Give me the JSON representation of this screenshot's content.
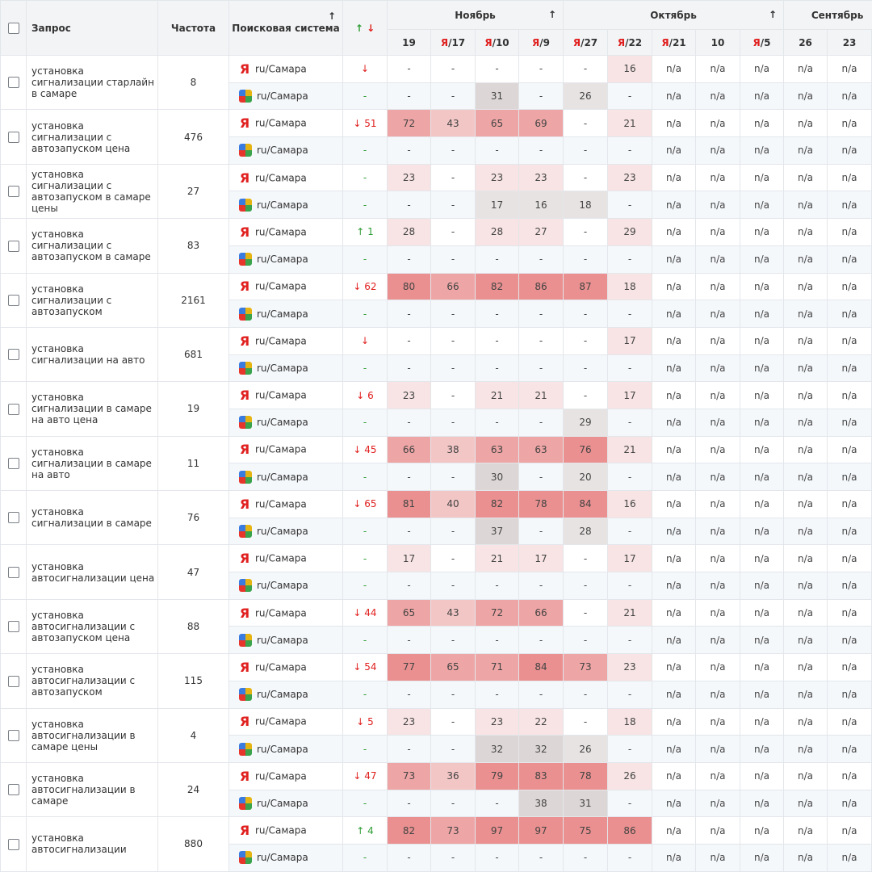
{
  "header": {
    "query_label": "Запрос",
    "freq_label": "Частота",
    "engine_label": "Поисковая система",
    "trend_up": "↑",
    "trend_down": "↓",
    "sort_arrow": "↑",
    "months": [
      {
        "label": "Ноябрь",
        "span": 4,
        "arrow": "↑"
      },
      {
        "label": "Октябрь",
        "span": 5,
        "arrow": "↑"
      },
      {
        "label": "Сентябрь",
        "span": 3,
        "arrow": ""
      }
    ],
    "days": [
      {
        "prefix": "",
        "label": "19"
      },
      {
        "prefix": "Я",
        "label": "/17"
      },
      {
        "prefix": "Я",
        "label": "/10"
      },
      {
        "prefix": "Я",
        "label": "/9"
      },
      {
        "prefix": "Я",
        "label": "/27"
      },
      {
        "prefix": "Я",
        "label": "/22"
      },
      {
        "prefix": "Я",
        "label": "/21"
      },
      {
        "prefix": "",
        "label": "10"
      },
      {
        "prefix": "Я",
        "label": "/5"
      },
      {
        "prefix": "",
        "label": "26"
      },
      {
        "prefix": "",
        "label": "23"
      },
      {
        "prefix": "",
        "label": ""
      }
    ]
  },
  "colors": {
    "yandex_scale": [
      "#f8e4e4",
      "#f3c6c6",
      "#eea5a5",
      "#ea9090"
    ],
    "google_scale": [
      "#e8e3e3",
      "#ddd6d6"
    ]
  },
  "engines": {
    "yandex": "ru/Самара",
    "google": "ru/Самара"
  },
  "rows": [
    {
      "query": "установка сигнализации старлайн в самаре",
      "freq": "8",
      "y_trend": {
        "dir": "down",
        "val": ""
      },
      "y": [
        "-",
        "-",
        "-",
        "-",
        "-",
        "16",
        "n/a",
        "n/a",
        "n/a",
        "n/a",
        "n/a",
        "n/a"
      ],
      "g_trend": "-",
      "g": [
        "-",
        "-",
        "31",
        "-",
        "26",
        "-",
        "n/a",
        "n/a",
        "n/a",
        "n/a",
        "n/a",
        "n/a"
      ]
    },
    {
      "query": "установка сигнализации с автозапуском цена",
      "freq": "476",
      "y_trend": {
        "dir": "down",
        "val": "51"
      },
      "y": [
        "72",
        "43",
        "65",
        "69",
        "-",
        "21",
        "n/a",
        "n/a",
        "n/a",
        "n/a",
        "n/a",
        "n/a"
      ],
      "g_trend": "-",
      "g": [
        "-",
        "-",
        "-",
        "-",
        "-",
        "-",
        "n/a",
        "n/a",
        "n/a",
        "n/a",
        "n/a",
        "n/a"
      ]
    },
    {
      "query": "установка сигнализации с автозапуском в самаре цены",
      "freq": "27",
      "y_trend": {
        "dir": "none",
        "val": "-"
      },
      "y": [
        "23",
        "-",
        "23",
        "23",
        "-",
        "23",
        "n/a",
        "n/a",
        "n/a",
        "n/a",
        "n/a",
        "n/a"
      ],
      "g_trend": "-",
      "g": [
        "-",
        "-",
        "17",
        "16",
        "18",
        "-",
        "n/a",
        "n/a",
        "n/a",
        "n/a",
        "n/a",
        "n/a"
      ]
    },
    {
      "query": "установка сигнализации с автозапуском в самаре",
      "freq": "83",
      "y_trend": {
        "dir": "up",
        "val": "1"
      },
      "y": [
        "28",
        "-",
        "28",
        "27",
        "-",
        "29",
        "n/a",
        "n/a",
        "n/a",
        "n/a",
        "n/a",
        "n/a"
      ],
      "g_trend": "-",
      "g": [
        "-",
        "-",
        "-",
        "-",
        "-",
        "-",
        "n/a",
        "n/a",
        "n/a",
        "n/a",
        "n/a",
        "n/a"
      ]
    },
    {
      "query": "установка сигнализации с автозапуском",
      "freq": "2161",
      "y_trend": {
        "dir": "down",
        "val": "62"
      },
      "y": [
        "80",
        "66",
        "82",
        "86",
        "87",
        "18",
        "n/a",
        "n/a",
        "n/a",
        "n/a",
        "n/a",
        "n/a"
      ],
      "g_trend": "-",
      "g": [
        "-",
        "-",
        "-",
        "-",
        "-",
        "-",
        "n/a",
        "n/a",
        "n/a",
        "n/a",
        "n/a",
        "n/a"
      ]
    },
    {
      "query": "установка сигнализации на авто",
      "freq": "681",
      "y_trend": {
        "dir": "down",
        "val": ""
      },
      "y": [
        "-",
        "-",
        "-",
        "-",
        "-",
        "17",
        "n/a",
        "n/a",
        "n/a",
        "n/a",
        "n/a",
        "n/a"
      ],
      "g_trend": "-",
      "g": [
        "-",
        "-",
        "-",
        "-",
        "-",
        "-",
        "n/a",
        "n/a",
        "n/a",
        "n/a",
        "n/a",
        "n/a"
      ]
    },
    {
      "query": "установка сигнализации в самаре на авто цена",
      "freq": "19",
      "y_trend": {
        "dir": "down",
        "val": "6"
      },
      "y": [
        "23",
        "-",
        "21",
        "21",
        "-",
        "17",
        "n/a",
        "n/a",
        "n/a",
        "n/a",
        "n/a",
        "n/a"
      ],
      "g_trend": "-",
      "g": [
        "-",
        "-",
        "-",
        "-",
        "29",
        "-",
        "n/a",
        "n/a",
        "n/a",
        "n/a",
        "n/a",
        "n/a"
      ]
    },
    {
      "query": "установка сигнализации в самаре на авто",
      "freq": "11",
      "y_trend": {
        "dir": "down",
        "val": "45"
      },
      "y": [
        "66",
        "38",
        "63",
        "63",
        "76",
        "21",
        "n/a",
        "n/a",
        "n/a",
        "n/a",
        "n/a",
        "n/a"
      ],
      "g_trend": "-",
      "g": [
        "-",
        "-",
        "30",
        "-",
        "20",
        "-",
        "n/a",
        "n/a",
        "n/a",
        "n/a",
        "n/a",
        "n/a"
      ]
    },
    {
      "query": "установка сигнализации в самаре",
      "freq": "76",
      "y_trend": {
        "dir": "down",
        "val": "65"
      },
      "y": [
        "81",
        "40",
        "82",
        "78",
        "84",
        "16",
        "n/a",
        "n/a",
        "n/a",
        "n/a",
        "n/a",
        "n/a"
      ],
      "g_trend": "-",
      "g": [
        "-",
        "-",
        "37",
        "-",
        "28",
        "-",
        "n/a",
        "n/a",
        "n/a",
        "n/a",
        "n/a",
        "n/a"
      ]
    },
    {
      "query": "установка автосигнализации цена",
      "freq": "47",
      "y_trend": {
        "dir": "none",
        "val": "-"
      },
      "y": [
        "17",
        "-",
        "21",
        "17",
        "-",
        "17",
        "n/a",
        "n/a",
        "n/a",
        "n/a",
        "n/a",
        "n/a"
      ],
      "g_trend": "-",
      "g": [
        "-",
        "-",
        "-",
        "-",
        "-",
        "-",
        "n/a",
        "n/a",
        "n/a",
        "n/a",
        "n/a",
        "n/a"
      ]
    },
    {
      "query": "установка автосигнализации с автозапуском цена",
      "freq": "88",
      "y_trend": {
        "dir": "down",
        "val": "44"
      },
      "y": [
        "65",
        "43",
        "72",
        "66",
        "-",
        "21",
        "n/a",
        "n/a",
        "n/a",
        "n/a",
        "n/a",
        "n/a"
      ],
      "g_trend": "-",
      "g": [
        "-",
        "-",
        "-",
        "-",
        "-",
        "-",
        "n/a",
        "n/a",
        "n/a",
        "n/a",
        "n/a",
        "n/a"
      ]
    },
    {
      "query": "установка автосигнализации с автозапуском",
      "freq": "115",
      "y_trend": {
        "dir": "down",
        "val": "54"
      },
      "y": [
        "77",
        "65",
        "71",
        "84",
        "73",
        "23",
        "n/a",
        "n/a",
        "n/a",
        "n/a",
        "n/a",
        "n/a"
      ],
      "g_trend": "-",
      "g": [
        "-",
        "-",
        "-",
        "-",
        "-",
        "-",
        "n/a",
        "n/a",
        "n/a",
        "n/a",
        "n/a",
        "n/a"
      ]
    },
    {
      "query": "установка автосигнализации в самаре цены",
      "freq": "4",
      "y_trend": {
        "dir": "down",
        "val": "5"
      },
      "y": [
        "23",
        "-",
        "23",
        "22",
        "-",
        "18",
        "n/a",
        "n/a",
        "n/a",
        "n/a",
        "n/a",
        "n/a"
      ],
      "g_trend": "-",
      "g": [
        "-",
        "-",
        "32",
        "32",
        "26",
        "-",
        "n/a",
        "n/a",
        "n/a",
        "n/a",
        "n/a",
        "n/a"
      ]
    },
    {
      "query": "установка автосигнализации в самаре",
      "freq": "24",
      "y_trend": {
        "dir": "down",
        "val": "47"
      },
      "y": [
        "73",
        "36",
        "79",
        "83",
        "78",
        "26",
        "n/a",
        "n/a",
        "n/a",
        "n/a",
        "n/a",
        "n/a"
      ],
      "g_trend": "-",
      "g": [
        "-",
        "-",
        "-",
        "38",
        "31",
        "-",
        "n/a",
        "n/a",
        "n/a",
        "n/a",
        "n/a",
        "n/a"
      ]
    },
    {
      "query": "установка автосигнализации",
      "freq": "880",
      "y_trend": {
        "dir": "up",
        "val": "4"
      },
      "y": [
        "82",
        "73",
        "97",
        "97",
        "75",
        "86",
        "n/a",
        "n/a",
        "n/a",
        "n/a",
        "n/a",
        "n/a"
      ],
      "g_trend": "-",
      "g": [
        "-",
        "-",
        "-",
        "-",
        "-",
        "-",
        "n/a",
        "n/a",
        "n/a",
        "n/a",
        "n/a",
        "n/a"
      ]
    }
  ]
}
